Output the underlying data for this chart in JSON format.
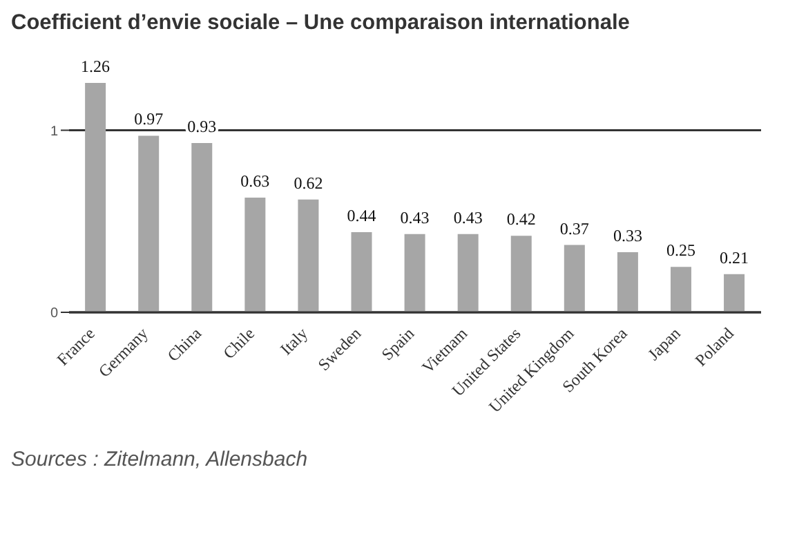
{
  "chart_data": {
    "type": "bar",
    "title": "Coefficient d’envie sociale – Une comparaison internationale",
    "categories": [
      "France",
      "Germany",
      "China",
      "Chile",
      "Italy",
      "Sweden",
      "Spain",
      "Vietnam",
      "United States",
      "United Kingdom",
      "South Korea",
      "Japan",
      "Poland"
    ],
    "values": [
      1.26,
      0.97,
      0.93,
      0.63,
      0.62,
      0.44,
      0.43,
      0.43,
      0.42,
      0.37,
      0.33,
      0.25,
      0.21
    ],
    "color": "#a6a6a6",
    "ylim": [
      0,
      1.26
    ],
    "yticks": [
      0,
      1
    ],
    "grid": "y",
    "data_labels": true,
    "annotations": [
      "Sources : Zitelmann, Allensbach"
    ]
  }
}
